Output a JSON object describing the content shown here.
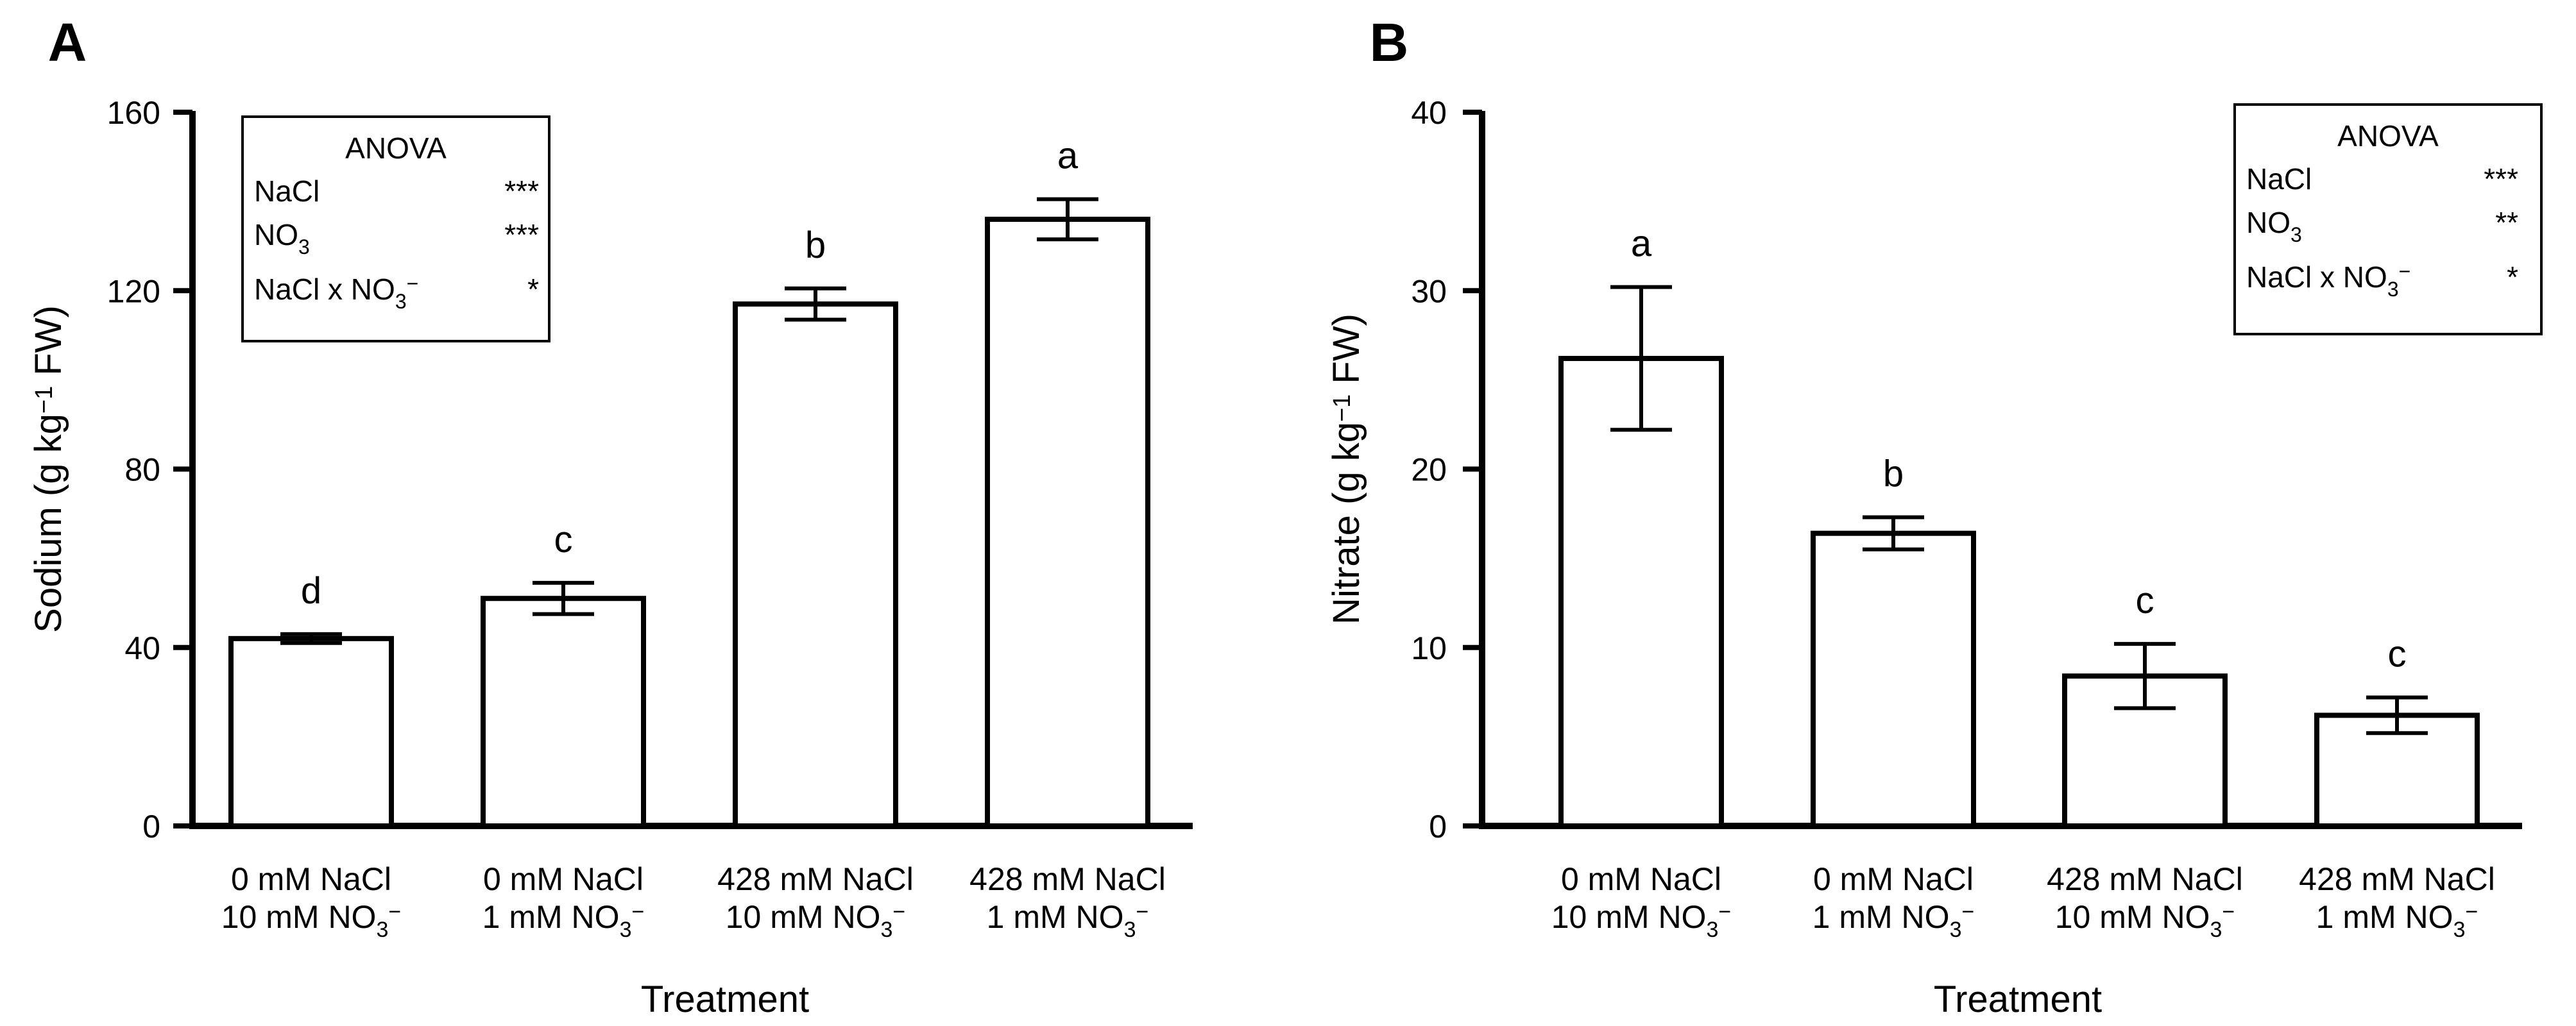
{
  "chart_data": [
    {
      "panel": "A",
      "type": "bar",
      "ylabel": "Sodium (g kg⁻¹ FW)",
      "xlabel": "Treatment",
      "ylim": [
        0,
        160
      ],
      "yticks": [
        0,
        40,
        80,
        120,
        160
      ],
      "categories": [
        [
          "0 mM NaCl",
          "10 mM NO₃⁻"
        ],
        [
          "0 mM NaCl",
          "1 mM NO₃⁻"
        ],
        [
          "428 mM NaCl",
          "10 mM NO₃⁻"
        ],
        [
          "428 mM NaCl",
          "1 mM NO₃⁻"
        ]
      ],
      "values": [
        42,
        51,
        117,
        136
      ],
      "errors": [
        1,
        3.5,
        3.5,
        4.5
      ],
      "letters": [
        "d",
        "c",
        "b",
        "a"
      ],
      "anova": {
        "title": "ANOVA",
        "rows": [
          {
            "term": "NaCl",
            "sig": "***"
          },
          {
            "term": "NO₃",
            "sig": "***"
          },
          {
            "term": "NaCl x NO₃⁻",
            "sig": "*"
          }
        ],
        "position": "top-left"
      }
    },
    {
      "panel": "B",
      "type": "bar",
      "ylabel": "Nitrate (g kg⁻¹ FW)",
      "xlabel": "Treatment",
      "ylim": [
        0,
        40
      ],
      "yticks": [
        0,
        10,
        20,
        30,
        40
      ],
      "categories": [
        [
          "0 mM NaCl",
          "10 mM NO₃⁻"
        ],
        [
          "0 mM NaCl",
          "1 mM NO₃⁻"
        ],
        [
          "428 mM NaCl",
          "10 mM NO₃⁻"
        ],
        [
          "428 mM NaCl",
          "1 mM NO₃⁻"
        ]
      ],
      "values": [
        26.2,
        16.4,
        8.4,
        6.2
      ],
      "errors": [
        4,
        0.9,
        1.8,
        1
      ],
      "letters": [
        "a",
        "b",
        "c",
        "c"
      ],
      "anova": {
        "title": "ANOVA",
        "rows": [
          {
            "term": "NaCl",
            "sig": "***"
          },
          {
            "term": "NO₃",
            "sig": "**"
          },
          {
            "term": "NaCl x NO₃⁻",
            "sig": "*"
          }
        ],
        "position": "top-right"
      }
    }
  ]
}
